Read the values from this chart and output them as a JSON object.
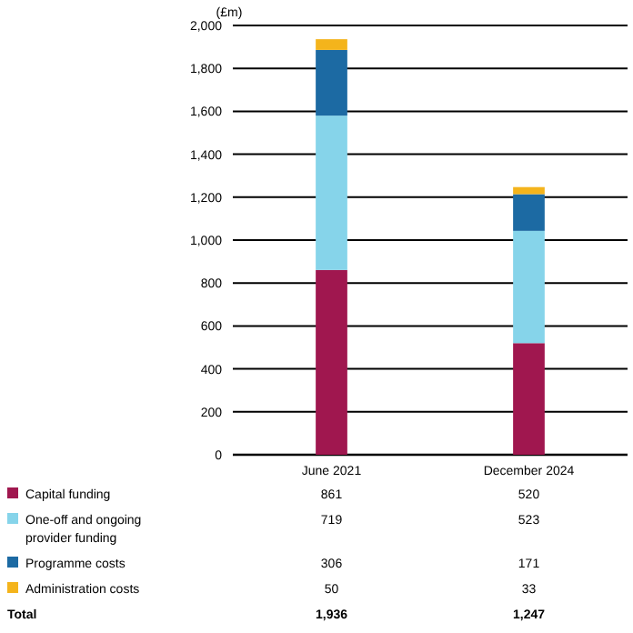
{
  "chart_data": {
    "type": "bar",
    "stacked": true,
    "ylabel": "(£m)",
    "categories": [
      "June 2021",
      "December 2024"
    ],
    "series": [
      {
        "name": "Capital funding",
        "color": "#a0174f",
        "values": [
          861,
          520
        ]
      },
      {
        "name": "One-off and ongoing provider funding",
        "color": "#86d4ea",
        "values": [
          719,
          523
        ]
      },
      {
        "name": "Programme costs",
        "color": "#1c6aa3",
        "values": [
          306,
          171
        ]
      },
      {
        "name": "Administration costs",
        "color": "#f4b41c",
        "values": [
          50,
          33
        ]
      }
    ],
    "annotations": [
      "Total",
      "1,936",
      "1,247"
    ],
    "data_labels": true,
    "ylim": [
      0,
      2000
    ],
    "yticks": [
      0,
      {
        "value": 200,
        "label": "200"
      },
      {
        "value": 400,
        "label": "400"
      },
      {
        "value": 600,
        "label": "600"
      },
      {
        "value": 800,
        "label": "800"
      },
      {
        "value": 1000,
        "label": "1,000"
      },
      {
        "value": 1200,
        "label": "1,200"
      },
      {
        "value": 1400,
        "label": "1,400"
      },
      {
        "value": 1600,
        "label": "1,600"
      },
      {
        "value": 1800,
        "label": "1,800"
      },
      {
        "value": 2000,
        "label": "2,000"
      }
    ],
    "grid": "y",
    "legend": "bottom left"
  }
}
